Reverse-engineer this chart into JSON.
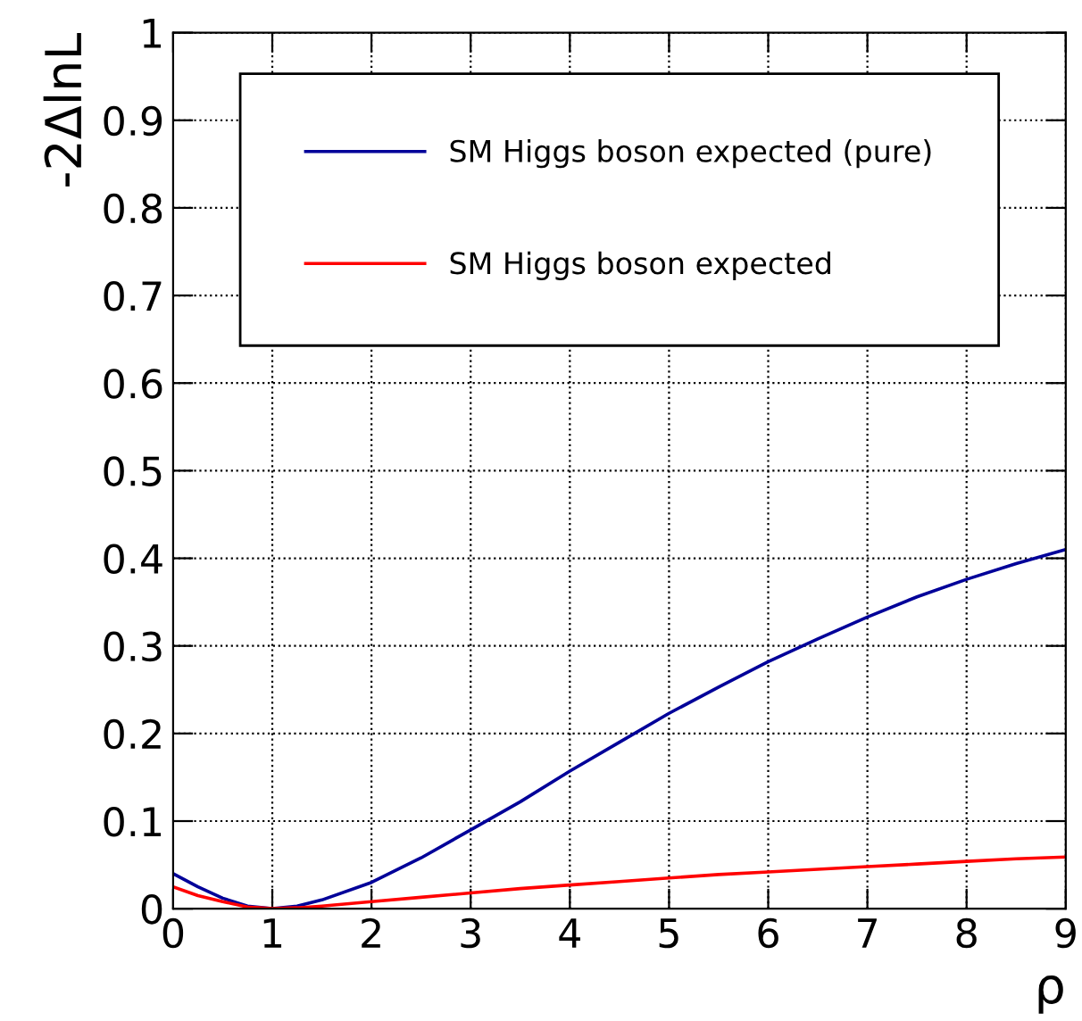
{
  "chart_data": {
    "type": "line",
    "xlabel": "ρ",
    "ylabel": "-2ΔlnL",
    "x": [
      0,
      0.25,
      0.5,
      0.75,
      1,
      1.25,
      1.5,
      2,
      2.5,
      3,
      3.5,
      4,
      4.5,
      5,
      5.5,
      6,
      6.5,
      7,
      7.5,
      8,
      8.5,
      9
    ],
    "series": [
      {
        "name": "SM Higgs boson expected (pure)",
        "color": "#000099",
        "values": [
          0.04,
          0.025,
          0.012,
          0.003,
          0.0,
          0.003,
          0.01,
          0.03,
          0.058,
          0.09,
          0.122,
          0.157,
          0.19,
          0.223,
          0.253,
          0.282,
          0.308,
          0.333,
          0.356,
          0.376,
          0.394,
          0.41
        ]
      },
      {
        "name": "SM Higgs boson expected",
        "color": "#ff0000",
        "values": [
          0.025,
          0.015,
          0.008,
          0.002,
          0.0,
          0.001,
          0.003,
          0.008,
          0.013,
          0.018,
          0.023,
          0.027,
          0.031,
          0.035,
          0.039,
          0.042,
          0.045,
          0.048,
          0.051,
          0.054,
          0.057,
          0.059
        ]
      }
    ],
    "xlim": [
      0,
      9
    ],
    "ylim": [
      0,
      1
    ],
    "xticks": [
      0,
      1,
      2,
      3,
      4,
      5,
      6,
      7,
      8,
      9
    ],
    "yticks": [
      0,
      0.1,
      0.2,
      0.3,
      0.4,
      0.5,
      0.6,
      0.7,
      0.8,
      0.9,
      1
    ],
    "grid": true,
    "legend": "top",
    "marker": "none",
    "line_style": "solid"
  }
}
